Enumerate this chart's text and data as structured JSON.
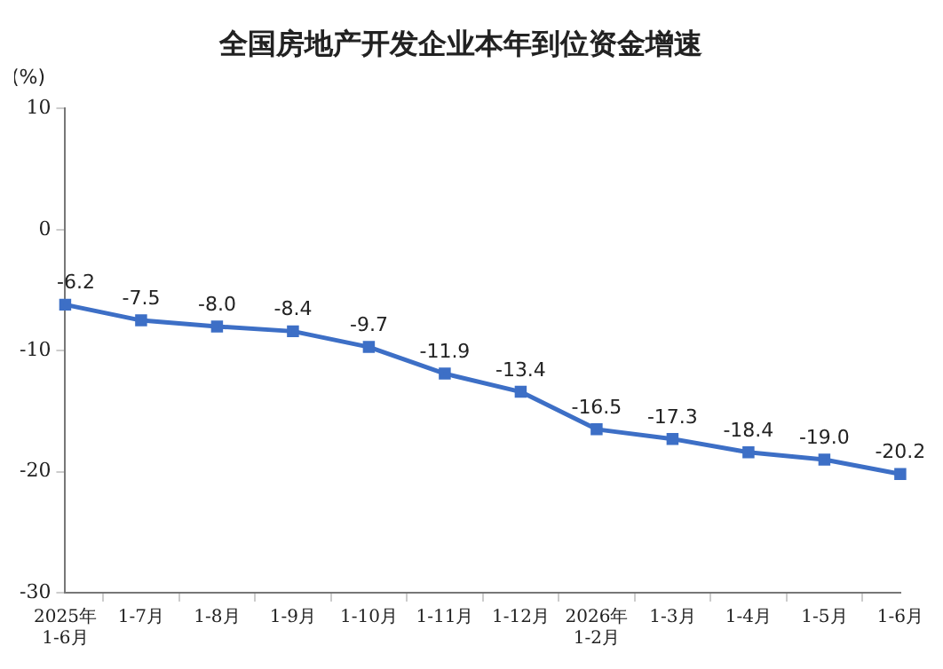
{
  "chart_data": {
    "type": "line",
    "title": "全国房地产开发企业本年到位资金增速",
    "ylabel": "(%)",
    "categories": [
      "2025年\n1-6月",
      "1-7月",
      "1-8月",
      "1-9月",
      "1-10月",
      "1-11月",
      "1-12月",
      "2026年\n1-2月",
      "1-3月",
      "1-4月",
      "1-5月",
      "1-6月"
    ],
    "series": [
      {
        "color": "#3d6fc6",
        "values": [
          -6.2,
          -7.5,
          -8.0,
          -8.4,
          -9.7,
          -11.9,
          -13.4,
          -16.5,
          -17.3,
          -18.4,
          -19.0,
          -20.2
        ],
        "value_labels": [
          "-6.2",
          "-7.5",
          "-8.0",
          "-8.4",
          "-9.7",
          "-11.9",
          "-13.4",
          "-16.5",
          "-17.3",
          "-18.4",
          "-19.0",
          "-20.2"
        ]
      }
    ],
    "ylim": [
      -30,
      10
    ],
    "yticks": [
      -30,
      -20,
      -10,
      0,
      10
    ],
    "grid": false,
    "legend": false,
    "marker": "square",
    "line_style": "solid"
  }
}
